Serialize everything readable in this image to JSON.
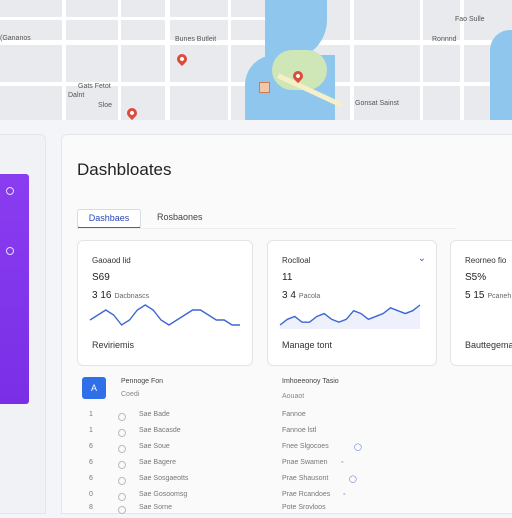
{
  "map": {
    "labels": [
      "Fao Sulle",
      "(Gananos",
      "Bunes Butleit",
      "Dalnt",
      "Gats Fetot",
      "Sloe",
      "Ronnnd",
      "Gonsat Sainst"
    ]
  },
  "sidebar": {
    "icons": [
      "circle-dot-icon",
      "circle-dot-icon"
    ]
  },
  "page": {
    "title": "Dashbloates"
  },
  "tabs": [
    {
      "label": "Dashbaes"
    },
    {
      "label": "Rosbaones"
    }
  ],
  "cards": [
    {
      "title": "Gaoaod lid",
      "value": "S69",
      "value2": "3 16",
      "value2_sub": "Dacbnascs",
      "footer": "Reviriemis"
    },
    {
      "title": "Roclloal",
      "value": "11",
      "value2": "3 4",
      "value2_sub": "Pacola",
      "footer": "Manage tont"
    },
    {
      "title": "Reorneo fio",
      "value": "S5%",
      "value2": "5 15",
      "value2_sub": "Pcaneh",
      "footer": "Bauttegemat"
    }
  ],
  "chart_data": [
    {
      "type": "line",
      "series": [
        {
          "values": [
            5,
            6,
            7,
            6,
            4,
            5,
            7,
            8,
            7,
            5,
            4,
            5,
            6,
            7,
            7,
            6,
            5,
            5,
            4,
            4
          ]
        }
      ]
    },
    {
      "type": "line",
      "series": [
        {
          "values": [
            3,
            5,
            6,
            4,
            4,
            6,
            7,
            5,
            4,
            5,
            8,
            7,
            5,
            6,
            7,
            9,
            8,
            7,
            8,
            10
          ]
        }
      ]
    }
  ],
  "list": {
    "avatar": "A",
    "left_title": "Pennoge Fon",
    "left_sub": "Coedi",
    "right_title": "Imhoeeonoy Tasio",
    "right_sub": "Aouaot",
    "rows": [
      {
        "num": "1",
        "name": "Sae Bade",
        "right": "Fannoe"
      },
      {
        "num": "1",
        "name": "Sae Bacasde",
        "right": "Fannoe lstl"
      },
      {
        "num": "6",
        "name": "Sae Soue",
        "right": "Fnee Slgocoes"
      },
      {
        "num": "6",
        "name": "Sae Bagere",
        "right": "Pnae Swamen"
      },
      {
        "num": "6",
        "name": "Sae Sosgaeotts",
        "right": "Prae Shausont"
      },
      {
        "num": "0",
        "name": "Sae Gosoomsg",
        "right": "Prae Rcandoes"
      },
      {
        "num": "8",
        "name": "Sae Sorne",
        "right": "Pote Srovloos"
      }
    ]
  }
}
